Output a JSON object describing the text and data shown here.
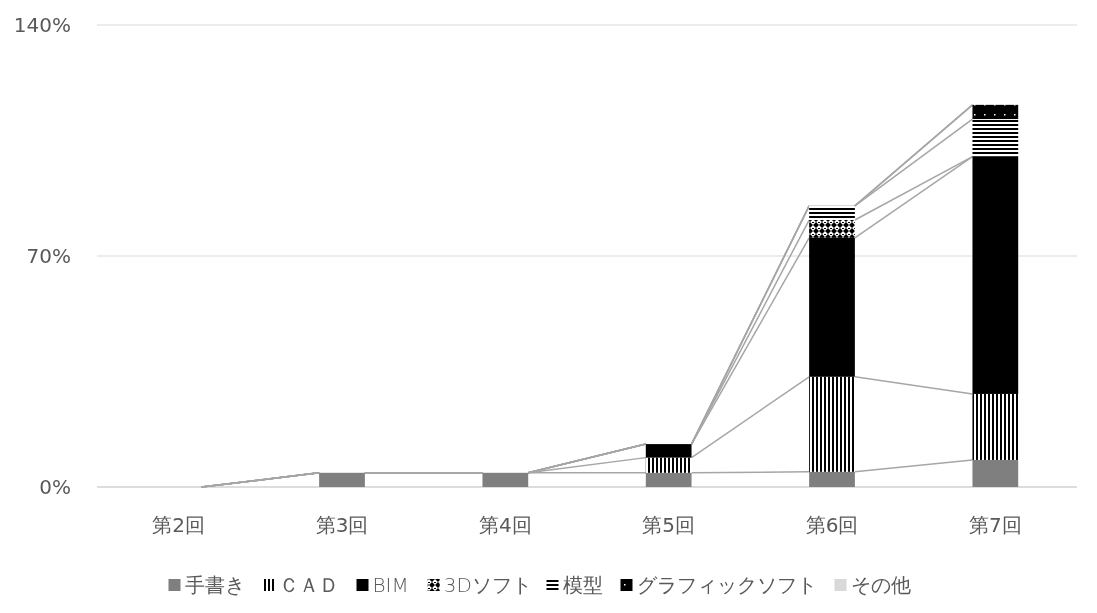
{
  "chart_data": {
    "type": "bar",
    "stacked": true,
    "categories": [
      "第2回",
      "第3回",
      "第4回",
      "第5回",
      "第6回",
      "第7回"
    ],
    "series": [
      {
        "name": "手書き",
        "color": "#7f7f7f",
        "values": [
          0,
          4.3,
          4.3,
          4.3,
          4.6,
          8.2
        ]
      },
      {
        "name": "ＣＡＤ",
        "color": "#000000",
        "values": [
          0,
          0,
          0,
          4.6,
          28.8,
          20.0
        ]
      },
      {
        "name": "BIM",
        "color": "#000000",
        "values": [
          0,
          0,
          0,
          4.1,
          42.1,
          71.9
        ]
      },
      {
        "name": "3Dソフト",
        "color": "#000000",
        "values": [
          0,
          0,
          0,
          0,
          5.4,
          0
        ]
      },
      {
        "name": "模型",
        "color": "#000000",
        "values": [
          0,
          0,
          0,
          0,
          4.3,
          11.4
        ]
      },
      {
        "name": "グラフィックソフト",
        "color": "#000000",
        "values": [
          0,
          0,
          0,
          0,
          0,
          4.3
        ]
      },
      {
        "name": "その他",
        "color": "#d9d9d9",
        "values": [
          0,
          0,
          0,
          0,
          0,
          0
        ]
      }
    ],
    "ylim": [
      0,
      140
    ],
    "yticks": [
      {
        "value": 0,
        "label": "0%"
      },
      {
        "value": 70,
        "label": "70%"
      },
      {
        "value": 140,
        "label": "140%"
      }
    ],
    "grid": "y",
    "legend": "bottom"
  }
}
